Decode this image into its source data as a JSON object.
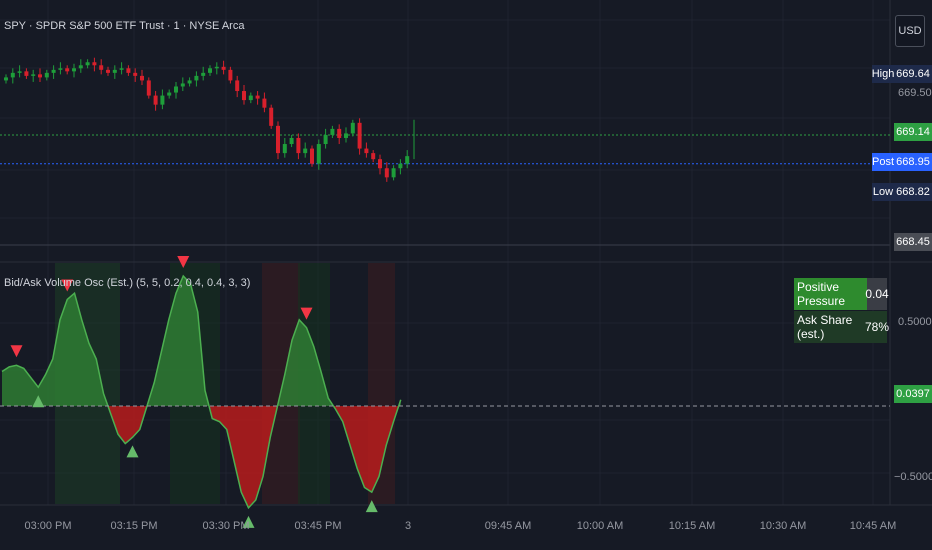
{
  "header": {
    "title": "SPY · SPDR S&P 500 ETF Trust · 1 · NYSE Arca",
    "currency": "USD"
  },
  "price_scale": {
    "high_tag": "High",
    "high_value": "669.64",
    "tick_669_50": "669.50",
    "current_value": "669.14",
    "post_tag": "Post",
    "post_value": "668.95",
    "low_tag": "Low",
    "low_value": "668.82",
    "bottom_value": "668.45"
  },
  "oscillator": {
    "title": "Bid/Ask Volume Osc (Est.) (5, 5, 0.2, 0.4, 0.4, 3, 3)",
    "axis_top": "0.5000",
    "axis_bottom": "−0.5000",
    "current_value": "0.0397",
    "table": [
      {
        "label": "Positive Pressure",
        "value": "0.04"
      },
      {
        "label": "Ask Share (est.)",
        "value": "78%"
      }
    ]
  },
  "time_axis": [
    "03:00 PM",
    "03:15 PM",
    "03:30 PM",
    "03:45 PM",
    "3",
    "09:45 AM",
    "10:00 AM",
    "10:15 AM",
    "10:30 AM",
    "10:45 AM"
  ],
  "colors": {
    "background": "#161a25",
    "up": "#26a69a",
    "candle_up": "#1e9e3a",
    "candle_down": "#d8202c",
    "osc_green": "#2e7d32",
    "osc_red": "#b71c1c",
    "post": "#2962ff",
    "label_green": "#2ea043"
  },
  "chart_data": [
    {
      "type": "candlestick",
      "title": "SPY · SPDR S&P 500 ETF Trust · 1 · NYSE Arca",
      "interval": "1 minute",
      "price_range": [
        668.45,
        669.64
      ],
      "values": {
        "high": 669.64,
        "last": 669.14,
        "post": 668.95,
        "low": 668.82
      },
      "closes_approx": [
        669.52,
        669.55,
        669.56,
        669.53,
        669.54,
        669.52,
        669.55,
        669.57,
        669.58,
        669.56,
        669.58,
        669.6,
        669.62,
        669.6,
        669.57,
        669.55,
        669.57,
        669.58,
        669.55,
        669.53,
        669.5,
        669.4,
        669.34,
        669.4,
        669.42,
        669.46,
        669.48,
        669.5,
        669.53,
        669.55,
        669.58,
        669.59,
        669.57,
        669.5,
        669.43,
        669.37,
        669.4,
        669.38,
        669.32,
        669.2,
        669.02,
        669.08,
        669.12,
        669.02,
        669.05,
        668.95,
        669.08,
        669.14,
        669.18,
        669.12,
        669.15,
        669.22,
        669.05,
        669.02,
        668.98,
        668.92,
        668.86,
        668.92,
        668.95,
        669.0
      ]
    },
    {
      "type": "area",
      "title": "Bid/Ask Volume Osc (Est.) (5, 5, 0.2, 0.4, 0.4, 3, 3)",
      "ylim": [
        -0.6,
        0.9
      ],
      "last": 0.0397,
      "values": [
        0.22,
        0.25,
        0.26,
        0.24,
        0.18,
        0.12,
        0.2,
        0.3,
        0.55,
        0.68,
        0.72,
        0.55,
        0.4,
        0.3,
        0.08,
        -0.05,
        -0.18,
        -0.24,
        -0.2,
        -0.15,
        0.0,
        0.15,
        0.35,
        0.55,
        0.72,
        0.83,
        0.78,
        0.6,
        0.1,
        -0.08,
        -0.1,
        -0.15,
        -0.35,
        -0.55,
        -0.65,
        -0.6,
        -0.45,
        -0.2,
        0.0,
        0.2,
        0.42,
        0.55,
        0.5,
        0.38,
        0.22,
        0.05,
        -0.02,
        -0.1,
        -0.25,
        -0.4,
        -0.52,
        -0.55,
        -0.45,
        -0.25,
        -0.1,
        0.04
      ],
      "sell_markers_at": [
        2,
        9,
        25,
        42
      ],
      "buy_markers_at": [
        5,
        18,
        34,
        51
      ]
    }
  ]
}
